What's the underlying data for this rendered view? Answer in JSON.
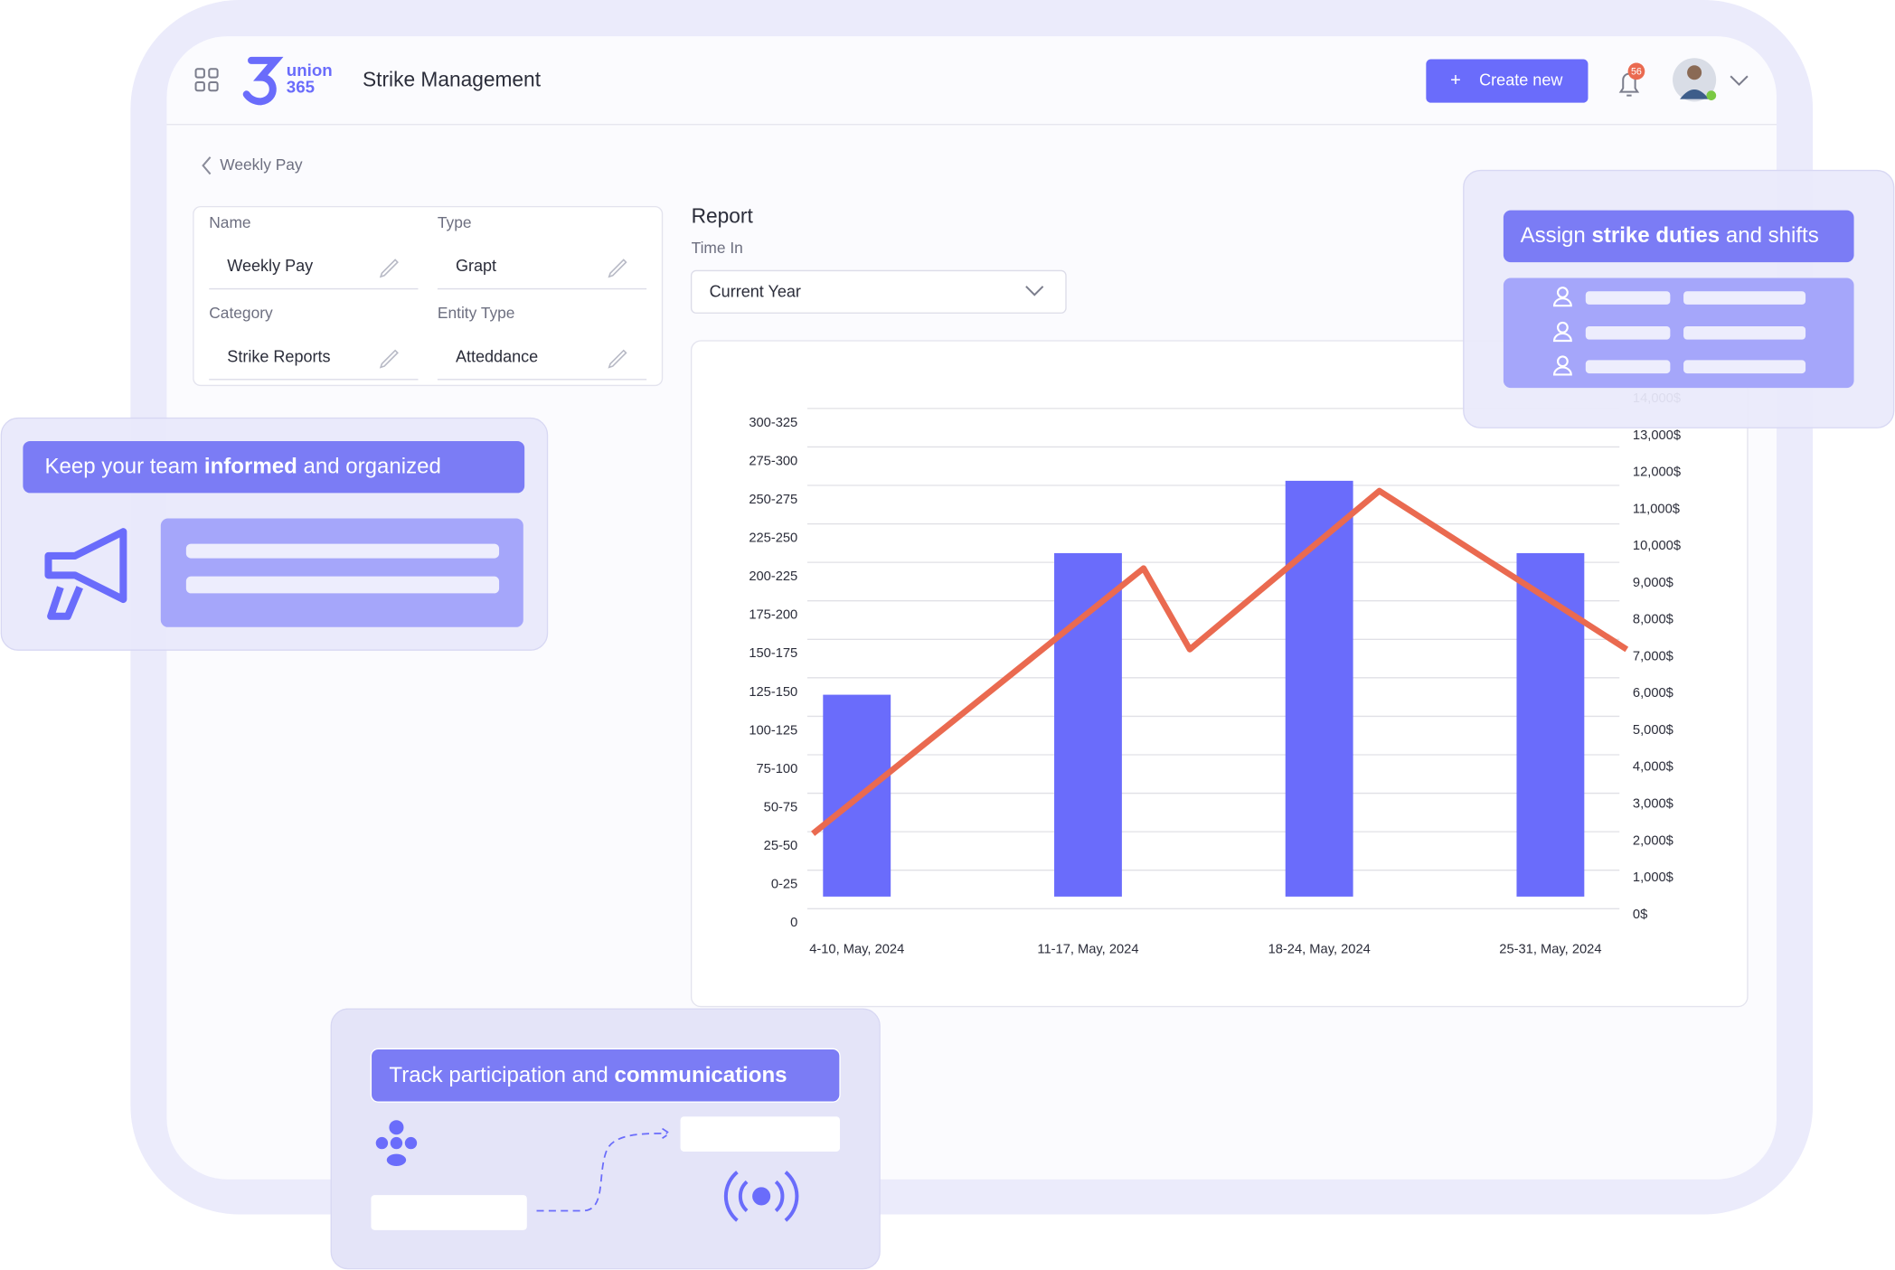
{
  "header": {
    "logo": [
      "union",
      "365"
    ],
    "title": "Strike Management",
    "create_button": "Create new",
    "notification_count": "56"
  },
  "breadcrumb": "Weekly Pay",
  "form": {
    "fields": [
      {
        "label": "Name",
        "value": "Weekly Pay"
      },
      {
        "label": "Type",
        "value": "Grapt"
      },
      {
        "label": "Category",
        "value": "Strike Reports"
      },
      {
        "label": "Entity Type",
        "value": "Atteddance"
      }
    ]
  },
  "report": {
    "title": "Report",
    "filter_label": "Time In",
    "filter_value": "Current Year"
  },
  "chart_data": {
    "type": "bar",
    "categories": [
      "4-10, May, 2024",
      "11-17, May, 2024",
      "18-24, May, 2024",
      "25-31, May, 2024"
    ],
    "series": [
      {
        "type": "bar",
        "color": "#6a6cfb",
        "values": [
          139,
          231,
          278,
          231
        ]
      },
      {
        "type": "line",
        "axis": "y2",
        "color": "#ea6a50",
        "x": [
          -0.19,
          1.24,
          1.44,
          2.26,
          3.33
        ],
        "values": [
          2200,
          9400,
          7200,
          11500,
          7200
        ]
      }
    ],
    "ylim": [
      0,
      325
    ],
    "yticks": [
      0,
      {
        "value": 25,
        "label": "0-25"
      },
      {
        "value": 50,
        "label": "25-50"
      },
      {
        "value": 75,
        "label": "50-75"
      },
      {
        "value": 100,
        "label": "75-100"
      },
      {
        "value": 125,
        "label": "100-125"
      },
      {
        "value": 150,
        "label": "125-150"
      },
      {
        "value": 175,
        "label": "150-175"
      },
      {
        "value": 200,
        "label": "175-200"
      },
      {
        "value": 225,
        "label": "200-225"
      },
      {
        "value": 250,
        "label": "225-250"
      },
      {
        "value": 275,
        "label": "250-275"
      },
      {
        "value": 300,
        "label": "275-300"
      },
      {
        "value": 325,
        "label": "300-325"
      }
    ],
    "y2lim": [
      0,
      14000
    ],
    "y2ticks": [
      {
        "value": 0,
        "label": "0$"
      },
      {
        "value": 1000,
        "label": "1,000$"
      },
      {
        "value": 2000,
        "label": "2,000$"
      },
      {
        "value": 3000,
        "label": "3,000$"
      },
      {
        "value": 4000,
        "label": "4,000$"
      },
      {
        "value": 5000,
        "label": "5,000$"
      },
      {
        "value": 6000,
        "label": "6,000$"
      },
      {
        "value": 7000,
        "label": "7,000$"
      },
      {
        "value": 8000,
        "label": "8,000$"
      },
      {
        "value": 9000,
        "label": "9,000$"
      },
      {
        "value": 10000,
        "label": "10,000$"
      },
      {
        "value": 11000,
        "label": "11,000$"
      },
      {
        "value": 12000,
        "label": "12,000$"
      },
      {
        "value": 13000,
        "label": "13,000$"
      },
      {
        "value": 14000,
        "label": "14,000$"
      }
    ],
    "grid": true
  },
  "cards": [
    {
      "title": [
        "Keep your team ",
        "informed",
        " and organized"
      ]
    },
    {
      "title": [
        "Assign ",
        "strike duties",
        " and shifts"
      ]
    },
    {
      "title": [
        "Track participation and ",
        "communications"
      ]
    }
  ]
}
